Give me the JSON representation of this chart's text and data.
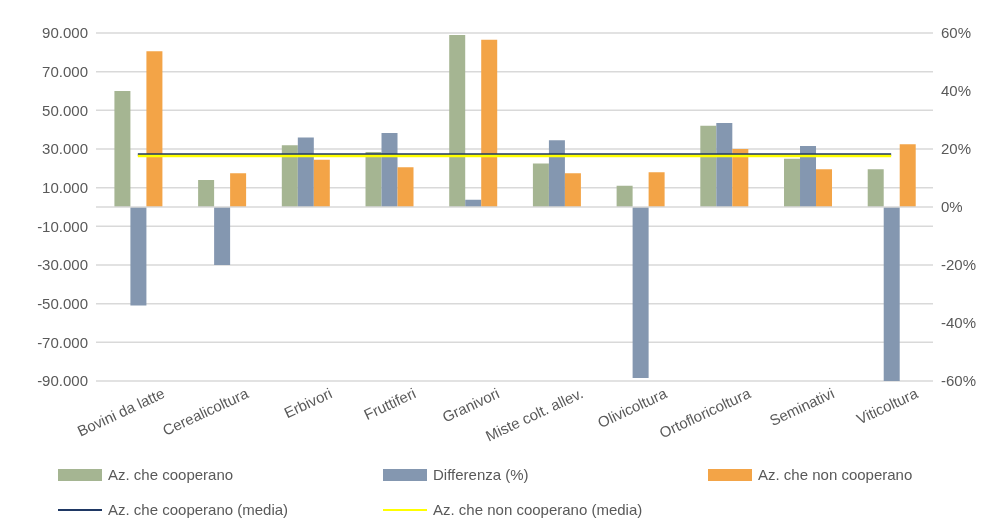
{
  "chart_data": {
    "type": "bar",
    "categories": [
      "Bovini da latte",
      "Cerealicoltura",
      "Erbivori",
      "Fruttiferi",
      "Granivori",
      "Miste colt. allev.",
      "Olivicoltura",
      "Ortofloricoltura",
      "Seminativi",
      "Viticoltura"
    ],
    "series": [
      {
        "name": "Az. che cooperano",
        "color": "#a5b592",
        "values": [
          60000,
          14000,
          32000,
          28500,
          89000,
          22500,
          11000,
          42000,
          25000,
          19500
        ]
      },
      {
        "name": "Differenza (%)",
        "color": "#8497b0",
        "axis": "y2",
        "values": [
          -34,
          -20,
          24,
          25.5,
          2.5,
          23,
          -59,
          29,
          21,
          -60
        ]
      },
      {
        "name": "Az. che non cooperano",
        "color": "#f3a447",
        "values": [
          80500,
          17500,
          24500,
          20500,
          86500,
          17500,
          18000,
          30000,
          19500,
          32500
        ]
      },
      {
        "name": "Az. che cooperano (media)",
        "type": "line",
        "color": "#1f3864",
        "values": [
          27200,
          27200,
          27200,
          27200,
          27200,
          27200,
          27200,
          27200,
          27200,
          27200
        ]
      },
      {
        "name": "Az. che non cooperano (media)",
        "type": "line",
        "color": "#ffff00",
        "values": [
          26400,
          26400,
          26400,
          26400,
          26400,
          26400,
          26400,
          26400,
          26400,
          26400
        ]
      }
    ],
    "ylim": [
      -90000,
      90000
    ],
    "yticks": [
      {
        "value": -90000,
        "label": "-90.000"
      },
      {
        "value": -70000,
        "label": "-70.000"
      },
      {
        "value": -50000,
        "label": "-50.000"
      },
      {
        "value": -30000,
        "label": "-30.000"
      },
      {
        "value": -10000,
        "label": "-10.000"
      },
      {
        "value": 10000,
        "label": "10.000"
      },
      {
        "value": 30000,
        "label": "30.000"
      },
      {
        "value": 50000,
        "label": "50.000"
      },
      {
        "value": 70000,
        "label": "70.000"
      },
      {
        "value": 90000,
        "label": "90.000"
      }
    ],
    "y2lim": [
      -60,
      60
    ],
    "y2ticks": [
      {
        "value": -60,
        "label": "-60%"
      },
      {
        "value": -40,
        "label": "-40%"
      },
      {
        "value": -20,
        "label": "-20%"
      },
      {
        "value": 0,
        "label": "0%"
      },
      {
        "value": 20,
        "label": "20%"
      },
      {
        "value": 40,
        "label": "40%"
      },
      {
        "value": 60,
        "label": "60%"
      }
    ],
    "grid": "y",
    "legend": "bottom",
    "marker": "none",
    "line_style": "solid"
  }
}
